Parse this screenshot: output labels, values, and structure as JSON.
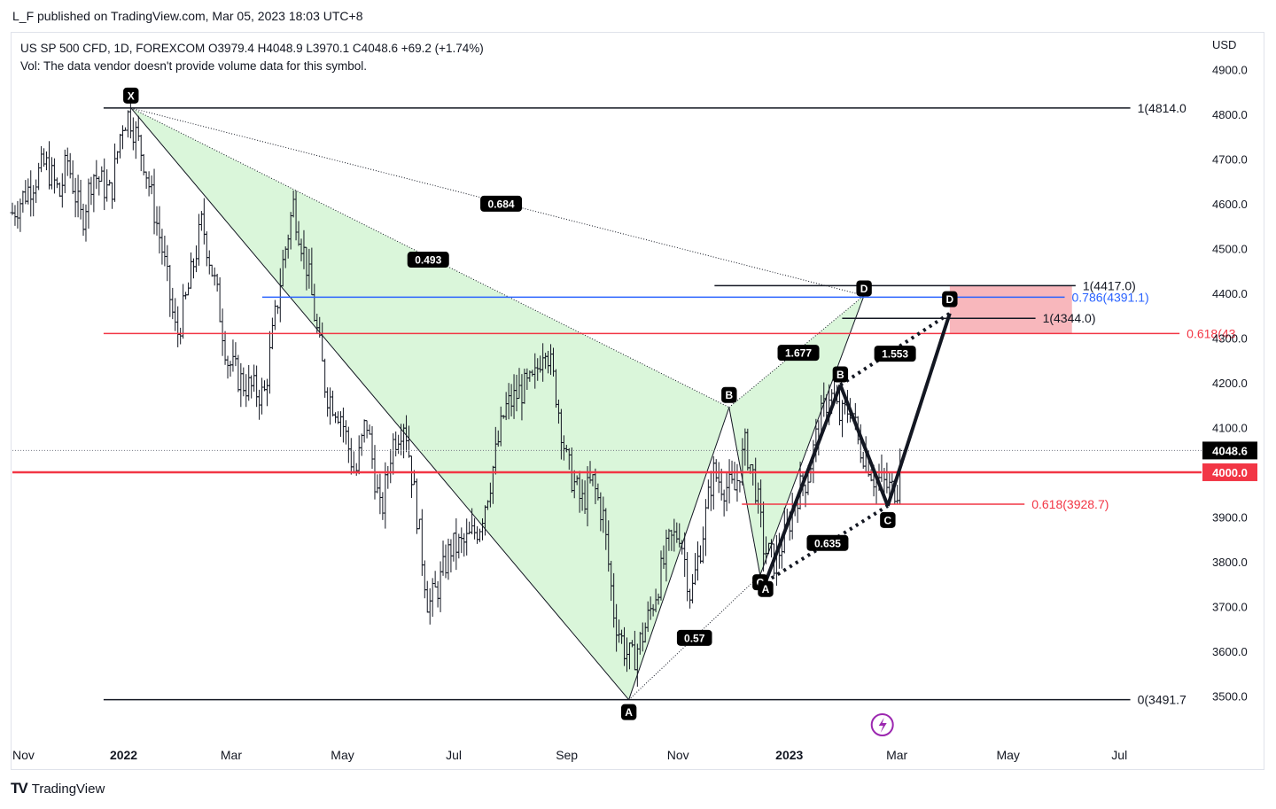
{
  "header": {
    "published": "L_F published on TradingView.com, Mar 05, 2023 18:03 UTC+8"
  },
  "legend": {
    "line1": "US SP 500 CFD, 1D, FOREXCOM  O3979.4  H4048.9  L3970.1  C4048.6  +69.2 (+1.74%)",
    "line2": "Vol: The data vendor doesn't provide volume data for this symbol."
  },
  "footer": {
    "brand": "TradingView",
    "logo": "TV"
  },
  "colors": {
    "candle": "#131722",
    "red": "#f23645",
    "blue": "#2962ff",
    "green_fill": "#d4f5d4",
    "pink_zone": "#f7aab0",
    "purple": "#9c27b0",
    "axis_text": "#131722"
  },
  "chart_data": {
    "type": "ohlc",
    "symbol": "US SP 500 CFD",
    "interval": "1D",
    "currency": "USD",
    "ylim": [
      3400,
      4980
    ],
    "y_ticks": [
      3500,
      3600,
      3700,
      3800,
      3900,
      4000,
      4100,
      4200,
      4300,
      4400,
      4500,
      4600,
      4700,
      4800,
      4900
    ],
    "y_tick_labels": [
      "3500.0",
      "3600.0",
      "3700.0",
      "3800.0",
      "3900.0",
      "4000.0",
      "4100.0",
      "4200.0",
      "4300.0",
      "4400.0",
      "4500.0",
      "4600.0",
      "4700.0",
      "4800.0",
      "4900.0"
    ],
    "x_range_days": [
      0,
      620
    ],
    "x_ticks": [
      {
        "label": "Nov",
        "day": 0
      },
      {
        "label": "2022",
        "day": 61,
        "bold": true
      },
      {
        "label": "Mar",
        "day": 120
      },
      {
        "label": "May",
        "day": 181
      },
      {
        "label": "Jul",
        "day": 242
      },
      {
        "label": "Sep",
        "day": 304
      },
      {
        "label": "Nov",
        "day": 365
      },
      {
        "label": "2023",
        "day": 426,
        "bold": true
      },
      {
        "label": "Mar",
        "day": 485
      },
      {
        "label": "May",
        "day": 546
      },
      {
        "label": "Jul",
        "day": 607
      }
    ],
    "price_path": [
      [
        0,
        4580
      ],
      [
        18,
        4690
      ],
      [
        26,
        4620
      ],
      [
        30,
        4700
      ],
      [
        38,
        4560
      ],
      [
        44,
        4670
      ],
      [
        54,
        4620
      ],
      [
        60,
        4780
      ],
      [
        64,
        4800
      ],
      [
        72,
        4700
      ],
      [
        82,
        4500
      ],
      [
        90,
        4300
      ],
      [
        96,
        4400
      ],
      [
        104,
        4560
      ],
      [
        112,
        4400
      ],
      [
        118,
        4250
      ],
      [
        126,
        4200
      ],
      [
        138,
        4170
      ],
      [
        148,
        4460
      ],
      [
        154,
        4600
      ],
      [
        162,
        4450
      ],
      [
        172,
        4180
      ],
      [
        180,
        4130
      ],
      [
        188,
        3990
      ],
      [
        194,
        4120
      ],
      [
        202,
        3900
      ],
      [
        208,
        4060
      ],
      [
        215,
        4120
      ],
      [
        222,
        3900
      ],
      [
        228,
        3700
      ],
      [
        234,
        3750
      ],
      [
        240,
        3830
      ],
      [
        248,
        3840
      ],
      [
        256,
        3880
      ],
      [
        262,
        3980
      ],
      [
        270,
        4140
      ],
      [
        278,
        4180
      ],
      [
        286,
        4200
      ],
      [
        292,
        4300
      ],
      [
        298,
        4180
      ],
      [
        304,
        4020
      ],
      [
        312,
        3930
      ],
      [
        318,
        3980
      ],
      [
        324,
        3900
      ],
      [
        330,
        3680
      ],
      [
        336,
        3600
      ],
      [
        340,
        3580
      ],
      [
        346,
        3640
      ],
      [
        352,
        3720
      ],
      [
        360,
        3840
      ],
      [
        366,
        3870
      ],
      [
        372,
        3720
      ],
      [
        378,
        3850
      ],
      [
        384,
        4000
      ],
      [
        390,
        3970
      ],
      [
        396,
        3960
      ],
      [
        402,
        4060
      ],
      [
        408,
        3960
      ],
      [
        412,
        3830
      ],
      [
        418,
        3800
      ],
      [
        424,
        3860
      ],
      [
        430,
        3950
      ],
      [
        436,
        3990
      ],
      [
        442,
        4100
      ],
      [
        448,
        4180
      ],
      [
        454,
        4120
      ],
      [
        460,
        4150
      ],
      [
        464,
        4060
      ],
      [
        468,
        4040
      ],
      [
        472,
        3990
      ],
      [
        476,
        3980
      ],
      [
        482,
        3960
      ],
      [
        486,
        3970
      ],
      [
        488,
        4048.6
      ]
    ],
    "last_price": {
      "value": 4048.6,
      "label": "4048.6"
    },
    "level_4000": {
      "value": 4000,
      "label": "4000.0"
    },
    "horizontal_levels": [
      {
        "name": "top-level",
        "value": 4814,
        "label": "1(4814.0",
        "x_from": 50,
        "x_to": 613,
        "color": "#131722"
      },
      {
        "name": "bottom-level",
        "value": 3491.7,
        "label": "0(3491.7",
        "x_from": 50,
        "x_to": 613,
        "color": "#131722"
      },
      {
        "name": "fib-618-long",
        "value": 4310,
        "label": "0.618(43",
        "x_from": 50,
        "x_to": 640,
        "color": "#f23645"
      },
      {
        "name": "fib-618-short",
        "value": 3928.7,
        "label": "0.618(3928.7)",
        "x_from": 400,
        "x_to": 555,
        "color": "#f23645"
      },
      {
        "name": "fib-786",
        "value": 4391.1,
        "label": "0.786(4391.1)",
        "x_from": 137,
        "x_to": 577,
        "color": "#2962ff"
      },
      {
        "name": "fib-1-4417",
        "value": 4417,
        "label": "1(4417.0)",
        "x_from": 385,
        "x_to": 583,
        "color": "#131722"
      },
      {
        "name": "fib-1-4344",
        "value": 4344,
        "label": "1(4344.0)",
        "x_from": 455,
        "x_to": 561,
        "color": "#131722"
      }
    ],
    "pattern_big": {
      "points": [
        {
          "label": "X",
          "day": 65,
          "value": 4814
        },
        {
          "label": "A",
          "day": 338,
          "value": 3491.7
        },
        {
          "label": "B",
          "day": 393,
          "value": 4145
        },
        {
          "label": "C",
          "day": 410,
          "value": 3770
        },
        {
          "label": "D",
          "day": 467,
          "value": 4395
        }
      ],
      "ratios": [
        {
          "label": "0.684",
          "day": 268,
          "value": 4600
        },
        {
          "label": "0.493",
          "day": 228,
          "value": 4475
        },
        {
          "label": "1.677",
          "day": 431,
          "value": 4267
        },
        {
          "label": "0.57",
          "day": 374,
          "value": 3630
        },
        {
          "label": "0.635",
          "day": 447,
          "value": 3842
        }
      ]
    },
    "pattern_abcd": {
      "points": [
        {
          "label": "A",
          "day": 413,
          "value": 3755
        },
        {
          "label": "B",
          "day": 454,
          "value": 4195
        },
        {
          "label": "C",
          "day": 480,
          "value": 3925
        },
        {
          "label": "D",
          "day": 514,
          "value": 4355
        }
      ],
      "ratios": [
        {
          "label": "1.553",
          "day": 484,
          "value": 4265
        }
      ]
    },
    "prz_zone": {
      "day_from": 514,
      "day_to": 581,
      "low": 4310,
      "high": 4417
    }
  }
}
